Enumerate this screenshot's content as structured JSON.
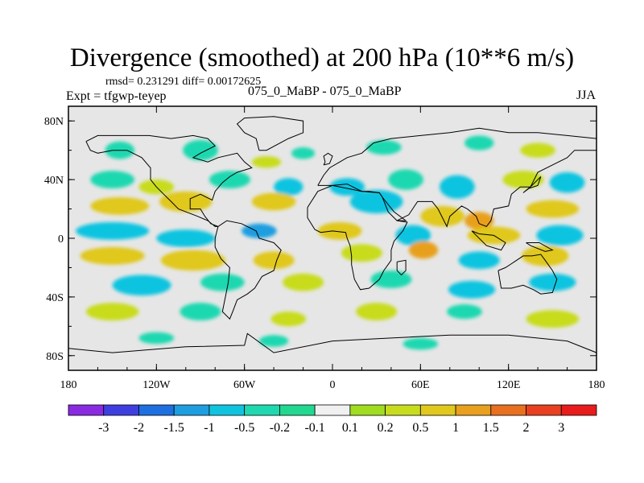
{
  "header": {
    "title": "Divergence (smoothed) at 200 hPa (10**6 m/s)",
    "stats": "rmsd= 0.231291 diff= 0.00172625",
    "expt": "Expt = tfgwp-teyep",
    "center_label": "075_0_MaBP - 075_0_MaBP",
    "season": "JJA"
  },
  "colors": {
    "background": "#e6e6e6",
    "frame": "#000000",
    "coast": "#000000"
  },
  "chart_data": {
    "type": "heatmap",
    "title": "Divergence (smoothed) at 200 hPa (10**6 m/s)",
    "xlabel": "",
    "ylabel": "",
    "xlim": [
      -180,
      180
    ],
    "ylim": [
      -90,
      90
    ],
    "x_ticks": [
      {
        "value": -180,
        "label": "180"
      },
      {
        "value": -120,
        "label": "120W"
      },
      {
        "value": -60,
        "label": "60W"
      },
      {
        "value": 0,
        "label": "0"
      },
      {
        "value": 60,
        "label": "60E"
      },
      {
        "value": 120,
        "label": "120E"
      },
      {
        "value": 180,
        "label": "180"
      }
    ],
    "y_ticks": [
      {
        "value": 80,
        "label": "80N"
      },
      {
        "value": 40,
        "label": "40N"
      },
      {
        "value": 0,
        "label": "0"
      },
      {
        "value": -40,
        "label": "40S"
      },
      {
        "value": -80,
        "label": "80S"
      }
    ],
    "colorbar": {
      "colors": [
        "#8a2be2",
        "#3f3fe0",
        "#1e6fe0",
        "#1e9ee0",
        "#10c4e0",
        "#1fd8b0",
        "#22d890",
        "#f0f0f0",
        "#a0dc20",
        "#c8dc1e",
        "#e0c81e",
        "#e8a01e",
        "#e87020",
        "#e84020",
        "#e81c1c"
      ],
      "labels": [
        "-3",
        "-2",
        "-1.5",
        "-1",
        "-0.5",
        "-0.2",
        "-0.1",
        "0.1",
        "0.2",
        "0.5",
        "1",
        "1.5",
        "2",
        "3"
      ]
    },
    "regions": [
      {
        "lon": -145,
        "lat": 60,
        "rx": 10,
        "ry": 6,
        "level": -0.2
      },
      {
        "lon": -90,
        "lat": 60,
        "rx": 12,
        "ry": 7,
        "level": -0.2
      },
      {
        "lon": -45,
        "lat": 52,
        "rx": 10,
        "ry": 4,
        "level": 0.2
      },
      {
        "lon": -20,
        "lat": 58,
        "rx": 8,
        "ry": 4,
        "level": -0.2
      },
      {
        "lon": 35,
        "lat": 62,
        "rx": 12,
        "ry": 5,
        "level": -0.2
      },
      {
        "lon": 100,
        "lat": 65,
        "rx": 10,
        "ry": 5,
        "level": -0.2
      },
      {
        "lon": 140,
        "lat": 60,
        "rx": 12,
        "ry": 5,
        "level": 0.2
      },
      {
        "lon": -150,
        "lat": 40,
        "rx": 15,
        "ry": 6,
        "level": -0.2
      },
      {
        "lon": -120,
        "lat": 35,
        "rx": 12,
        "ry": 5,
        "level": 0.2
      },
      {
        "lon": -70,
        "lat": 40,
        "rx": 14,
        "ry": 6,
        "level": -0.2
      },
      {
        "lon": -30,
        "lat": 35,
        "rx": 10,
        "ry": 6,
        "level": -0.5
      },
      {
        "lon": 10,
        "lat": 35,
        "rx": 12,
        "ry": 6,
        "level": -0.5
      },
      {
        "lon": 50,
        "lat": 40,
        "rx": 12,
        "ry": 7,
        "level": -0.2
      },
      {
        "lon": 85,
        "lat": 35,
        "rx": 12,
        "ry": 8,
        "level": -0.5
      },
      {
        "lon": 130,
        "lat": 40,
        "rx": 14,
        "ry": 6,
        "level": 0.2
      },
      {
        "lon": 160,
        "lat": 38,
        "rx": 12,
        "ry": 7,
        "level": -0.5
      },
      {
        "lon": -145,
        "lat": 22,
        "rx": 20,
        "ry": 6,
        "level": 0.5
      },
      {
        "lon": -100,
        "lat": 25,
        "rx": 18,
        "ry": 7,
        "level": 0.5
      },
      {
        "lon": -40,
        "lat": 25,
        "rx": 15,
        "ry": 6,
        "level": 0.5
      },
      {
        "lon": 30,
        "lat": 25,
        "rx": 18,
        "ry": 8,
        "level": -0.5
      },
      {
        "lon": 75,
        "lat": 15,
        "rx": 15,
        "ry": 7,
        "level": 0.5
      },
      {
        "lon": 100,
        "lat": 12,
        "rx": 10,
        "ry": 6,
        "level": 1
      },
      {
        "lon": 150,
        "lat": 20,
        "rx": 18,
        "ry": 6,
        "level": 0.5
      },
      {
        "lon": -150,
        "lat": 5,
        "rx": 25,
        "ry": 6,
        "level": -0.5
      },
      {
        "lon": -100,
        "lat": 0,
        "rx": 20,
        "ry": 6,
        "level": -0.5
      },
      {
        "lon": -50,
        "lat": 5,
        "rx": 12,
        "ry": 5,
        "level": -1
      },
      {
        "lon": 5,
        "lat": 5,
        "rx": 15,
        "ry": 6,
        "level": 0.5
      },
      {
        "lon": 55,
        "lat": 2,
        "rx": 12,
        "ry": 7,
        "level": -0.5
      },
      {
        "lon": 110,
        "lat": 2,
        "rx": 18,
        "ry": 6,
        "level": 0.5
      },
      {
        "lon": 155,
        "lat": 2,
        "rx": 16,
        "ry": 7,
        "level": -0.5
      },
      {
        "lon": -150,
        "lat": -12,
        "rx": 22,
        "ry": 6,
        "level": 0.5
      },
      {
        "lon": -95,
        "lat": -15,
        "rx": 22,
        "ry": 7,
        "level": 0.5
      },
      {
        "lon": -40,
        "lat": -15,
        "rx": 14,
        "ry": 6,
        "level": 0.5
      },
      {
        "lon": 20,
        "lat": -10,
        "rx": 14,
        "ry": 6,
        "level": 0.2
      },
      {
        "lon": 62,
        "lat": -8,
        "rx": 10,
        "ry": 6,
        "level": 1
      },
      {
        "lon": 100,
        "lat": -15,
        "rx": 14,
        "ry": 6,
        "level": -0.5
      },
      {
        "lon": 145,
        "lat": -12,
        "rx": 16,
        "ry": 7,
        "level": 0.5
      },
      {
        "lon": -130,
        "lat": -32,
        "rx": 20,
        "ry": 7,
        "level": -0.5
      },
      {
        "lon": -75,
        "lat": -30,
        "rx": 15,
        "ry": 6,
        "level": -0.2
      },
      {
        "lon": -20,
        "lat": -30,
        "rx": 14,
        "ry": 6,
        "level": 0.2
      },
      {
        "lon": 40,
        "lat": -28,
        "rx": 14,
        "ry": 6,
        "level": -0.2
      },
      {
        "lon": 95,
        "lat": -35,
        "rx": 16,
        "ry": 6,
        "level": -0.5
      },
      {
        "lon": 150,
        "lat": -30,
        "rx": 16,
        "ry": 6,
        "level": -0.5
      },
      {
        "lon": -150,
        "lat": -50,
        "rx": 18,
        "ry": 6,
        "level": 0.2
      },
      {
        "lon": -90,
        "lat": -50,
        "rx": 14,
        "ry": 6,
        "level": -0.2
      },
      {
        "lon": -30,
        "lat": -55,
        "rx": 12,
        "ry": 5,
        "level": 0.2
      },
      {
        "lon": 30,
        "lat": -50,
        "rx": 14,
        "ry": 6,
        "level": 0.2
      },
      {
        "lon": 90,
        "lat": -50,
        "rx": 12,
        "ry": 5,
        "level": -0.2
      },
      {
        "lon": 150,
        "lat": -55,
        "rx": 18,
        "ry": 6,
        "level": 0.2
      },
      {
        "lon": -120,
        "lat": -68,
        "rx": 12,
        "ry": 4,
        "level": -0.2
      },
      {
        "lon": -40,
        "lat": -70,
        "rx": 10,
        "ry": 4,
        "level": -0.2
      },
      {
        "lon": 60,
        "lat": -72,
        "rx": 12,
        "ry": 4,
        "level": -0.2
      }
    ],
    "coastlines": [
      [
        [
          -168,
          66
        ],
        [
          -160,
          70
        ],
        [
          -140,
          70
        ],
        [
          -125,
          70
        ],
        [
          -110,
          68
        ],
        [
          -95,
          70
        ],
        [
          -85,
          68
        ],
        [
          -80,
          63
        ],
        [
          -90,
          58
        ],
        [
          -95,
          55
        ],
        [
          -85,
          52
        ],
        [
          -78,
          55
        ],
        [
          -65,
          58
        ],
        [
          -60,
          52
        ],
        [
          -55,
          48
        ],
        [
          -65,
          45
        ],
        [
          -70,
          42
        ],
        [
          -75,
          38
        ],
        [
          -80,
          32
        ],
        [
          -82,
          26
        ],
        [
          -90,
          30
        ],
        [
          -97,
          27
        ],
        [
          -97,
          20
        ],
        [
          -90,
          20
        ],
        [
          -87,
          15
        ],
        [
          -83,
          10
        ],
        [
          -78,
          8
        ],
        [
          -80,
          8
        ],
        [
          -85,
          12
        ],
        [
          -92,
          15
        ],
        [
          -105,
          20
        ],
        [
          -110,
          25
        ],
        [
          -115,
          30
        ],
        [
          -120,
          35
        ],
        [
          -124,
          40
        ],
        [
          -124,
          48
        ],
        [
          -130,
          55
        ],
        [
          -140,
          60
        ],
        [
          -150,
          60
        ],
        [
          -160,
          58
        ],
        [
          -165,
          60
        ],
        [
          -168,
          66
        ]
      ],
      [
        [
          -78,
          8
        ],
        [
          -72,
          12
        ],
        [
          -62,
          10
        ],
        [
          -52,
          5
        ],
        [
          -50,
          0
        ],
        [
          -40,
          -3
        ],
        [
          -35,
          -8
        ],
        [
          -38,
          -15
        ],
        [
          -40,
          -22
        ],
        [
          -48,
          -26
        ],
        [
          -53,
          -34
        ],
        [
          -58,
          -38
        ],
        [
          -65,
          -42
        ],
        [
          -68,
          -50
        ],
        [
          -70,
          -55
        ],
        [
          -75,
          -50
        ],
        [
          -73,
          -40
        ],
        [
          -71,
          -30
        ],
        [
          -70,
          -20
        ],
        [
          -76,
          -14
        ],
        [
          -80,
          -6
        ],
        [
          -80,
          0
        ],
        [
          -78,
          8
        ]
      ],
      [
        [
          -10,
          36
        ],
        [
          -6,
          43
        ],
        [
          -2,
          48
        ],
        [
          5,
          52
        ],
        [
          10,
          55
        ],
        [
          20,
          58
        ],
        [
          28,
          65
        ],
        [
          40,
          68
        ],
        [
          60,
          70
        ],
        [
          80,
          72
        ],
        [
          100,
          75
        ],
        [
          120,
          72
        ],
        [
          140,
          72
        ],
        [
          160,
          70
        ],
        [
          180,
          68
        ],
        [
          180,
          60
        ],
        [
          165,
          60
        ],
        [
          160,
          55
        ],
        [
          150,
          50
        ],
        [
          140,
          45
        ],
        [
          135,
          35
        ],
        [
          128,
          35
        ],
        [
          122,
          30
        ],
        [
          120,
          22
        ],
        [
          110,
          20
        ],
        [
          108,
          12
        ],
        [
          105,
          8
        ],
        [
          100,
          10
        ],
        [
          98,
          15
        ],
        [
          92,
          20
        ],
        [
          88,
          22
        ],
        [
          80,
          15
        ],
        [
          78,
          8
        ],
        [
          72,
          20
        ],
        [
          68,
          25
        ],
        [
          58,
          25
        ],
        [
          56,
          22
        ],
        [
          52,
          16
        ],
        [
          44,
          12
        ],
        [
          50,
          12
        ],
        [
          42,
          18
        ],
        [
          34,
          28
        ],
        [
          32,
          31
        ],
        [
          25,
          32
        ],
        [
          20,
          32
        ],
        [
          10,
          34
        ],
        [
          0,
          36
        ],
        [
          -5,
          36
        ],
        [
          -10,
          36
        ]
      ],
      [
        [
          -17,
          21
        ],
        [
          -17,
          14
        ],
        [
          -12,
          6
        ],
        [
          -8,
          4
        ],
        [
          0,
          5
        ],
        [
          9,
          4
        ],
        [
          10,
          0
        ],
        [
          12,
          -5
        ],
        [
          13,
          -12
        ],
        [
          13,
          -18
        ],
        [
          15,
          -28
        ],
        [
          19,
          -35
        ],
        [
          25,
          -34
        ],
        [
          32,
          -28
        ],
        [
          35,
          -22
        ],
        [
          40,
          -15
        ],
        [
          40,
          -8
        ],
        [
          42,
          -2
        ],
        [
          48,
          5
        ],
        [
          51,
          11
        ],
        [
          44,
          12
        ],
        [
          38,
          18
        ],
        [
          34,
          28
        ],
        [
          32,
          31
        ],
        [
          20,
          32
        ],
        [
          10,
          37
        ],
        [
          0,
          36
        ],
        [
          -10,
          32
        ],
        [
          -17,
          21
        ]
      ],
      [
        [
          113,
          -22
        ],
        [
          115,
          -34
        ],
        [
          122,
          -34
        ],
        [
          130,
          -32
        ],
        [
          137,
          -35
        ],
        [
          142,
          -38
        ],
        [
          150,
          -37
        ],
        [
          153,
          -28
        ],
        [
          150,
          -22
        ],
        [
          145,
          -15
        ],
        [
          142,
          -11
        ],
        [
          136,
          -12
        ],
        [
          130,
          -12
        ],
        [
          124,
          -16
        ],
        [
          118,
          -20
        ],
        [
          113,
          -22
        ]
      ],
      [
        [
          -180,
          -75
        ],
        [
          -150,
          -78
        ],
        [
          -100,
          -74
        ],
        [
          -60,
          -73
        ],
        [
          -58,
          -65
        ],
        [
          -40,
          -78
        ],
        [
          0,
          -70
        ],
        [
          40,
          -68
        ],
        [
          80,
          -66
        ],
        [
          120,
          -66
        ],
        [
          160,
          -70
        ],
        [
          180,
          -78
        ]
      ],
      [
        [
          -50,
          60
        ],
        [
          -45,
          60
        ],
        [
          -30,
          68
        ],
        [
          -20,
          72
        ],
        [
          -20,
          80
        ],
        [
          -40,
          83
        ],
        [
          -60,
          82
        ],
        [
          -65,
          78
        ],
        [
          -60,
          72
        ],
        [
          -52,
          68
        ],
        [
          -50,
          60
        ]
      ],
      [
        [
          -6,
          50
        ],
        [
          -2,
          51
        ],
        [
          0,
          56
        ],
        [
          -3,
          58
        ],
        [
          -6,
          56
        ],
        [
          -5,
          52
        ],
        [
          -6,
          50
        ]
      ],
      [
        [
          130,
          31
        ],
        [
          134,
          34
        ],
        [
          140,
          36
        ],
        [
          142,
          42
        ],
        [
          140,
          40
        ],
        [
          136,
          36
        ],
        [
          130,
          31
        ]
      ],
      [
        [
          44,
          -16
        ],
        [
          50,
          -15
        ],
        [
          50,
          -22
        ],
        [
          47,
          -25
        ],
        [
          44,
          -22
        ],
        [
          44,
          -16
        ]
      ],
      [
        [
          95,
          5
        ],
        [
          105,
          -5
        ],
        [
          115,
          -8
        ],
        [
          118,
          -3
        ],
        [
          110,
          2
        ],
        [
          100,
          3
        ],
        [
          95,
          5
        ]
      ],
      [
        [
          132,
          -3
        ],
        [
          141,
          -3
        ],
        [
          150,
          -8
        ],
        [
          145,
          -9
        ],
        [
          135,
          -5
        ],
        [
          132,
          -3
        ]
      ]
    ]
  }
}
